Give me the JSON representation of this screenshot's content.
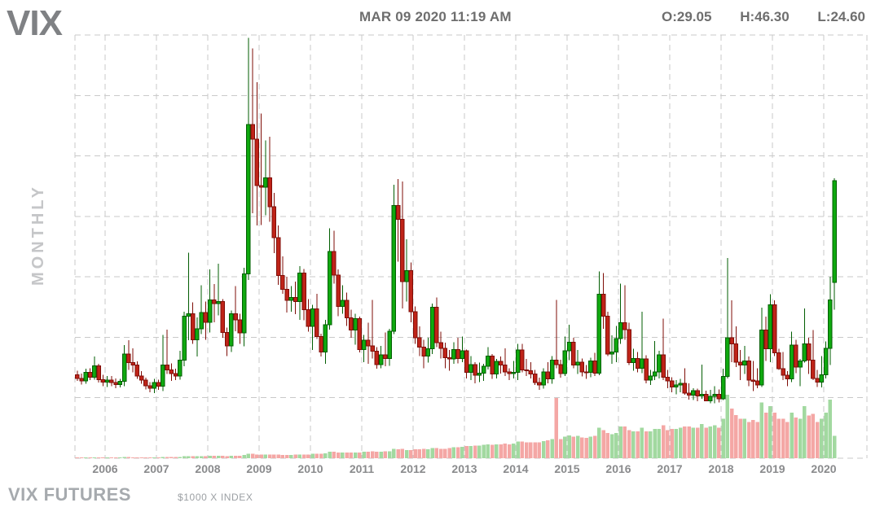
{
  "header": {
    "symbol": "VIX",
    "timestamp": "MAR 09 2020 11:19 AM",
    "open_label": "O:29.05",
    "high_label": "H:46.30",
    "low_label": "L:24.60"
  },
  "side_label": "MONTHLY",
  "footer": {
    "title": "VIX FUTURES",
    "subtitle": "$1000 X INDEX"
  },
  "colors": {
    "background": "#ffffff",
    "grid": "#c9c9c9",
    "up_fill": "#0fa90f",
    "up_border": "#025e02",
    "down_fill": "#bf2318",
    "down_border": "#7f0d07",
    "volume_up": "#a2d9a0",
    "volume_down": "#f4a7a5",
    "tick_text": "#8a8b8d"
  },
  "chart_data": {
    "type": "candlestick_with_volume",
    "title": "VIX",
    "interval": "monthly",
    "start_month": "2005-06",
    "end_month": "2020-03",
    "x_tick_labels": [
      "2006",
      "2007",
      "2008",
      "2009",
      "2010",
      "2011",
      "2012",
      "2013",
      "2014",
      "2015",
      "2016",
      "2017",
      "2018",
      "2019",
      "2020"
    ],
    "y_gridlines": [
      0,
      10,
      20,
      30,
      40,
      50,
      60,
      70
    ],
    "ylim": [
      0,
      75
    ],
    "volume_unit": "relative 0-100",
    "legend": "each row = [open, high, low, close, volume]",
    "candles": [
      [
        13.8,
        14.5,
        12.8,
        13.2,
        1
      ],
      [
        13.2,
        14.0,
        12.2,
        12.8,
        1
      ],
      [
        12.8,
        14.8,
        12.3,
        14.2,
        1
      ],
      [
        14.2,
        14.9,
        12.9,
        13.4,
        1
      ],
      [
        13.4,
        16.8,
        13.0,
        15.3,
        1
      ],
      [
        15.3,
        15.6,
        12.5,
        13.0,
        1
      ],
      [
        13.0,
        13.8,
        11.9,
        12.6,
        1
      ],
      [
        12.6,
        13.6,
        11.8,
        12.9,
        1
      ],
      [
        12.9,
        13.6,
        11.9,
        12.5,
        1
      ],
      [
        12.5,
        13.2,
        11.6,
        12.2,
        1
      ],
      [
        12.2,
        13.1,
        11.7,
        12.7,
        1
      ],
      [
        12.7,
        18.7,
        11.9,
        17.2,
        2
      ],
      [
        17.2,
        19.5,
        14.6,
        15.8,
        2
      ],
      [
        15.8,
        18.2,
        14.2,
        15.4,
        1
      ],
      [
        15.4,
        16.0,
        13.1,
        13.6,
        1
      ],
      [
        13.6,
        14.4,
        12.3,
        12.9,
        1
      ],
      [
        12.9,
        13.3,
        11.4,
        12.0,
        1
      ],
      [
        12.0,
        12.6,
        10.9,
        11.6,
        1
      ],
      [
        11.6,
        13.1,
        10.8,
        12.5,
        1
      ],
      [
        12.5,
        13.0,
        11.3,
        11.9,
        1
      ],
      [
        11.9,
        20.4,
        11.1,
        15.4,
        2
      ],
      [
        15.4,
        21.3,
        13.9,
        14.6,
        2
      ],
      [
        14.6,
        15.7,
        12.8,
        14.0,
        2
      ],
      [
        14.0,
        14.8,
        12.9,
        13.6,
        2
      ],
      [
        13.6,
        17.8,
        13.0,
        16.2,
        2
      ],
      [
        16.2,
        24.2,
        15.2,
        23.5,
        3
      ],
      [
        23.5,
        34.0,
        19.5,
        23.9,
        3
      ],
      [
        23.9,
        25.8,
        18.9,
        19.6,
        3
      ],
      [
        19.6,
        23.3,
        16.8,
        21.4,
        3
      ],
      [
        21.4,
        28.6,
        20.5,
        24.1,
        3
      ],
      [
        24.1,
        25.9,
        19.6,
        22.5,
        3
      ],
      [
        22.5,
        31.2,
        20.8,
        26.2,
        4
      ],
      [
        26.2,
        28.8,
        22.5,
        25.6,
        4
      ],
      [
        25.6,
        32.2,
        23.6,
        25.9,
        4
      ],
      [
        25.9,
        26.3,
        19.9,
        20.8,
        4
      ],
      [
        20.8,
        21.6,
        16.9,
        18.6,
        3
      ],
      [
        18.6,
        24.4,
        17.6,
        23.9,
        4
      ],
      [
        23.9,
        28.5,
        21.0,
        22.9,
        4
      ],
      [
        22.9,
        23.9,
        18.9,
        20.7,
        4
      ],
      [
        20.7,
        31.5,
        18.5,
        30.5,
        5
      ],
      [
        30.5,
        69.5,
        29.5,
        55.2,
        7
      ],
      [
        55.2,
        67.8,
        40.5,
        52.8,
        7
      ],
      [
        52.8,
        62.2,
        38.5,
        45.1,
        6
      ],
      [
        45.1,
        57.0,
        38.6,
        44.8,
        6
      ],
      [
        44.8,
        52.6,
        40.2,
        46.4,
        6
      ],
      [
        46.4,
        53.2,
        39.1,
        41.6,
        6
      ],
      [
        41.6,
        43.9,
        33.9,
        36.5,
        6
      ],
      [
        36.5,
        38.5,
        28.7,
        30.2,
        6
      ],
      [
        30.2,
        33.4,
        27.2,
        27.9,
        5
      ],
      [
        27.9,
        30.0,
        24.1,
        26.1,
        5
      ],
      [
        26.1,
        28.5,
        24.2,
        26.6,
        5
      ],
      [
        26.6,
        29.2,
        23.8,
        25.9,
        6
      ],
      [
        25.9,
        31.8,
        22.9,
        30.6,
        6
      ],
      [
        30.6,
        31.3,
        22.8,
        24.6,
        6
      ],
      [
        24.6,
        26.3,
        20.9,
        21.8,
        6
      ],
      [
        21.8,
        25.4,
        17.9,
        24.7,
        7
      ],
      [
        24.7,
        27.2,
        19.7,
        20.1,
        7
      ],
      [
        20.1,
        20.6,
        16.8,
        17.6,
        7
      ],
      [
        17.6,
        22.9,
        15.6,
        22.1,
        8
      ],
      [
        22.1,
        38.0,
        21.3,
        34.2,
        10
      ],
      [
        34.2,
        37.6,
        28.9,
        30.3,
        10
      ],
      [
        30.3,
        31.2,
        23.5,
        25.1,
        9
      ],
      [
        25.1,
        28.6,
        23.9,
        26.1,
        9
      ],
      [
        26.1,
        27.4,
        21.9,
        23.2,
        9
      ],
      [
        23.2,
        24.6,
        19.9,
        21.2,
        9
      ],
      [
        21.2,
        23.9,
        18.8,
        23.1,
        9
      ],
      [
        23.1,
        23.4,
        17.5,
        18.0,
        9
      ],
      [
        18.0,
        20.4,
        15.9,
        19.5,
        10
      ],
      [
        19.5,
        22.4,
        15.6,
        18.6,
        10
      ],
      [
        18.6,
        26.2,
        16.5,
        17.7,
        11
      ],
      [
        17.7,
        18.4,
        14.8,
        15.5,
        10
      ],
      [
        15.5,
        18.6,
        14.9,
        17.1,
        10
      ],
      [
        17.1,
        20.8,
        15.2,
        16.5,
        11
      ],
      [
        16.5,
        21.4,
        15.3,
        21.0,
        11
      ],
      [
        21.0,
        45.2,
        20.5,
        41.8,
        15
      ],
      [
        41.8,
        46.2,
        32.5,
        39.5,
        14
      ],
      [
        39.5,
        45.8,
        24.8,
        29.2,
        15
      ],
      [
        29.2,
        36.2,
        25.9,
        31.0,
        13
      ],
      [
        31.0,
        32.4,
        22.5,
        24.2,
        13
      ],
      [
        24.2,
        25.1,
        18.9,
        19.9,
        14
      ],
      [
        19.9,
        21.8,
        16.9,
        18.4,
        14
      ],
      [
        18.4,
        19.6,
        14.9,
        16.9,
        15
      ],
      [
        16.9,
        19.9,
        15.8,
        18.1,
        14
      ],
      [
        18.1,
        25.6,
        17.2,
        25.0,
        16
      ],
      [
        25.0,
        26.6,
        18.4,
        19.1,
        16
      ],
      [
        19.1,
        20.9,
        16.5,
        18.2,
        15
      ],
      [
        18.2,
        19.1,
        14.9,
        16.6,
        15
      ],
      [
        16.6,
        17.9,
        14.5,
        16.4,
        16
      ],
      [
        16.4,
        19.2,
        15.6,
        18.0,
        17
      ],
      [
        18.0,
        19.9,
        15.7,
        16.5,
        17
      ],
      [
        16.5,
        20.1,
        15.9,
        17.8,
        18
      ],
      [
        17.8,
        18.0,
        13.2,
        14.2,
        19
      ],
      [
        14.2,
        16.9,
        12.9,
        15.5,
        19
      ],
      [
        15.5,
        15.9,
        12.4,
        13.7,
        20
      ],
      [
        13.7,
        15.8,
        12.6,
        14.1,
        20
      ],
      [
        14.1,
        15.6,
        12.8,
        15.2,
        21
      ],
      [
        15.2,
        18.4,
        14.7,
        16.9,
        22
      ],
      [
        16.9,
        17.2,
        13.1,
        13.9,
        21
      ],
      [
        13.9,
        16.4,
        13.2,
        16.0,
        22
      ],
      [
        16.0,
        16.8,
        14.0,
        15.4,
        22
      ],
      [
        15.4,
        18.2,
        13.6,
        14.3,
        23
      ],
      [
        14.3,
        14.9,
        12.9,
        14.0,
        22
      ],
      [
        14.0,
        16.1,
        13.2,
        14.2,
        23
      ],
      [
        14.2,
        18.9,
        12.9,
        17.9,
        26
      ],
      [
        17.9,
        18.9,
        14.2,
        14.6,
        26
      ],
      [
        14.6,
        16.4,
        13.6,
        14.5,
        25
      ],
      [
        14.5,
        15.9,
        13.2,
        13.9,
        25
      ],
      [
        13.9,
        14.6,
        12.1,
        12.5,
        25
      ],
      [
        12.5,
        13.3,
        11.3,
        12.1,
        25
      ],
      [
        12.1,
        14.9,
        11.5,
        14.3,
        27
      ],
      [
        14.3,
        15.9,
        12.4,
        13.1,
        28
      ],
      [
        13.1,
        16.9,
        12.3,
        16.2,
        30
      ],
      [
        16.2,
        26.2,
        14.9,
        15.5,
        95
      ],
      [
        15.5,
        16.3,
        13.3,
        14.0,
        30
      ],
      [
        14.0,
        20.1,
        13.6,
        17.8,
        34
      ],
      [
        17.8,
        22.1,
        16.2,
        19.2,
        36
      ],
      [
        19.2,
        19.9,
        14.9,
        15.4,
        34
      ],
      [
        15.4,
        17.9,
        13.9,
        15.9,
        35
      ],
      [
        15.9,
        16.5,
        13.5,
        14.3,
        33
      ],
      [
        14.3,
        15.4,
        13.1,
        14.2,
        32
      ],
      [
        14.2,
        16.6,
        13.4,
        16.1,
        34
      ],
      [
        16.1,
        17.4,
        13.6,
        14.1,
        35
      ],
      [
        14.1,
        30.9,
        13.7,
        27.1,
        48
      ],
      [
        27.1,
        30.6,
        21.4,
        23.5,
        44
      ],
      [
        23.5,
        24.2,
        16.9,
        17.2,
        40
      ],
      [
        17.2,
        20.3,
        15.6,
        17.6,
        38
      ],
      [
        17.6,
        21.9,
        15.9,
        19.8,
        40
      ],
      [
        19.8,
        28.9,
        18.9,
        22.4,
        50
      ],
      [
        22.4,
        28.6,
        19.6,
        21.3,
        50
      ],
      [
        21.3,
        22.4,
        15.4,
        15.8,
        44
      ],
      [
        15.8,
        18.1,
        14.5,
        16.5,
        42
      ],
      [
        16.5,
        17.6,
        14.2,
        14.9,
        42
      ],
      [
        14.9,
        24.2,
        14.1,
        16.4,
        48
      ],
      [
        16.4,
        17.0,
        12.4,
        12.9,
        42
      ],
      [
        12.9,
        14.6,
        12.1,
        13.6,
        42
      ],
      [
        13.6,
        19.4,
        12.9,
        14.3,
        46
      ],
      [
        14.3,
        17.8,
        13.2,
        17.1,
        46
      ],
      [
        17.1,
        23.1,
        12.9,
        13.4,
        52
      ],
      [
        13.4,
        14.6,
        11.6,
        12.8,
        44
      ],
      [
        12.8,
        13.4,
        10.9,
        11.8,
        46
      ],
      [
        11.8,
        12.9,
        10.6,
        12.1,
        46
      ],
      [
        12.1,
        13.1,
        10.9,
        12.4,
        48
      ],
      [
        12.4,
        14.9,
        10.5,
        10.8,
        50
      ],
      [
        10.8,
        12.4,
        9.7,
        10.4,
        50
      ],
      [
        10.4,
        11.6,
        9.6,
        11.2,
        48
      ],
      [
        11.2,
        11.5,
        9.4,
        10.3,
        48
      ],
      [
        10.3,
        15.5,
        9.8,
        10.6,
        54
      ],
      [
        10.6,
        11.2,
        9.4,
        9.5,
        48
      ],
      [
        9.5,
        11.3,
        9.1,
        10.2,
        50
      ],
      [
        10.2,
        11.9,
        9.1,
        10.6,
        52
      ],
      [
        10.6,
        11.4,
        9.2,
        9.8,
        48
      ],
      [
        9.8,
        14.8,
        9.6,
        13.5,
        62
      ],
      [
        13.5,
        33.1,
        13.2,
        19.9,
        100
      ],
      [
        19.9,
        26.1,
        15.9,
        18.9,
        78
      ],
      [
        18.9,
        21.8,
        15.1,
        15.9,
        68
      ],
      [
        15.9,
        17.9,
        12.9,
        15.4,
        62
      ],
      [
        15.4,
        18.6,
        13.9,
        16.1,
        62
      ],
      [
        16.1,
        16.8,
        11.9,
        12.9,
        57
      ],
      [
        12.9,
        16.1,
        11.1,
        12.8,
        60
      ],
      [
        12.8,
        14.9,
        11.6,
        12.1,
        57
      ],
      [
        12.1,
        24.9,
        11.8,
        21.2,
        88
      ],
      [
        21.2,
        23.4,
        16.1,
        18.1,
        72
      ],
      [
        18.1,
        27.1,
        15.9,
        25.4,
        82
      ],
      [
        25.4,
        26.1,
        16.9,
        17.4,
        72
      ],
      [
        17.4,
        18.1,
        14.6,
        14.8,
        62
      ],
      [
        14.8,
        17.6,
        12.9,
        13.7,
        62
      ],
      [
        13.7,
        14.4,
        11.9,
        13.1,
        57
      ],
      [
        13.1,
        20.9,
        12.6,
        18.7,
        72
      ],
      [
        18.7,
        19.6,
        14.1,
        15.1,
        64
      ],
      [
        15.1,
        16.4,
        11.9,
        16.1,
        62
      ],
      [
        16.1,
        24.8,
        15.8,
        18.9,
        82
      ],
      [
        18.9,
        19.9,
        13.9,
        16.2,
        67
      ],
      [
        16.2,
        21.2,
        12.9,
        13.2,
        70
      ],
      [
        13.2,
        14.6,
        11.8,
        12.6,
        57
      ],
      [
        12.6,
        16.9,
        11.7,
        13.8,
        62
      ],
      [
        13.8,
        19.3,
        13.2,
        18.2,
        72
      ],
      [
        18.2,
        30.0,
        15.4,
        26.2,
        92
      ],
      [
        29.05,
        46.3,
        24.6,
        45.9,
        35
      ]
    ]
  }
}
